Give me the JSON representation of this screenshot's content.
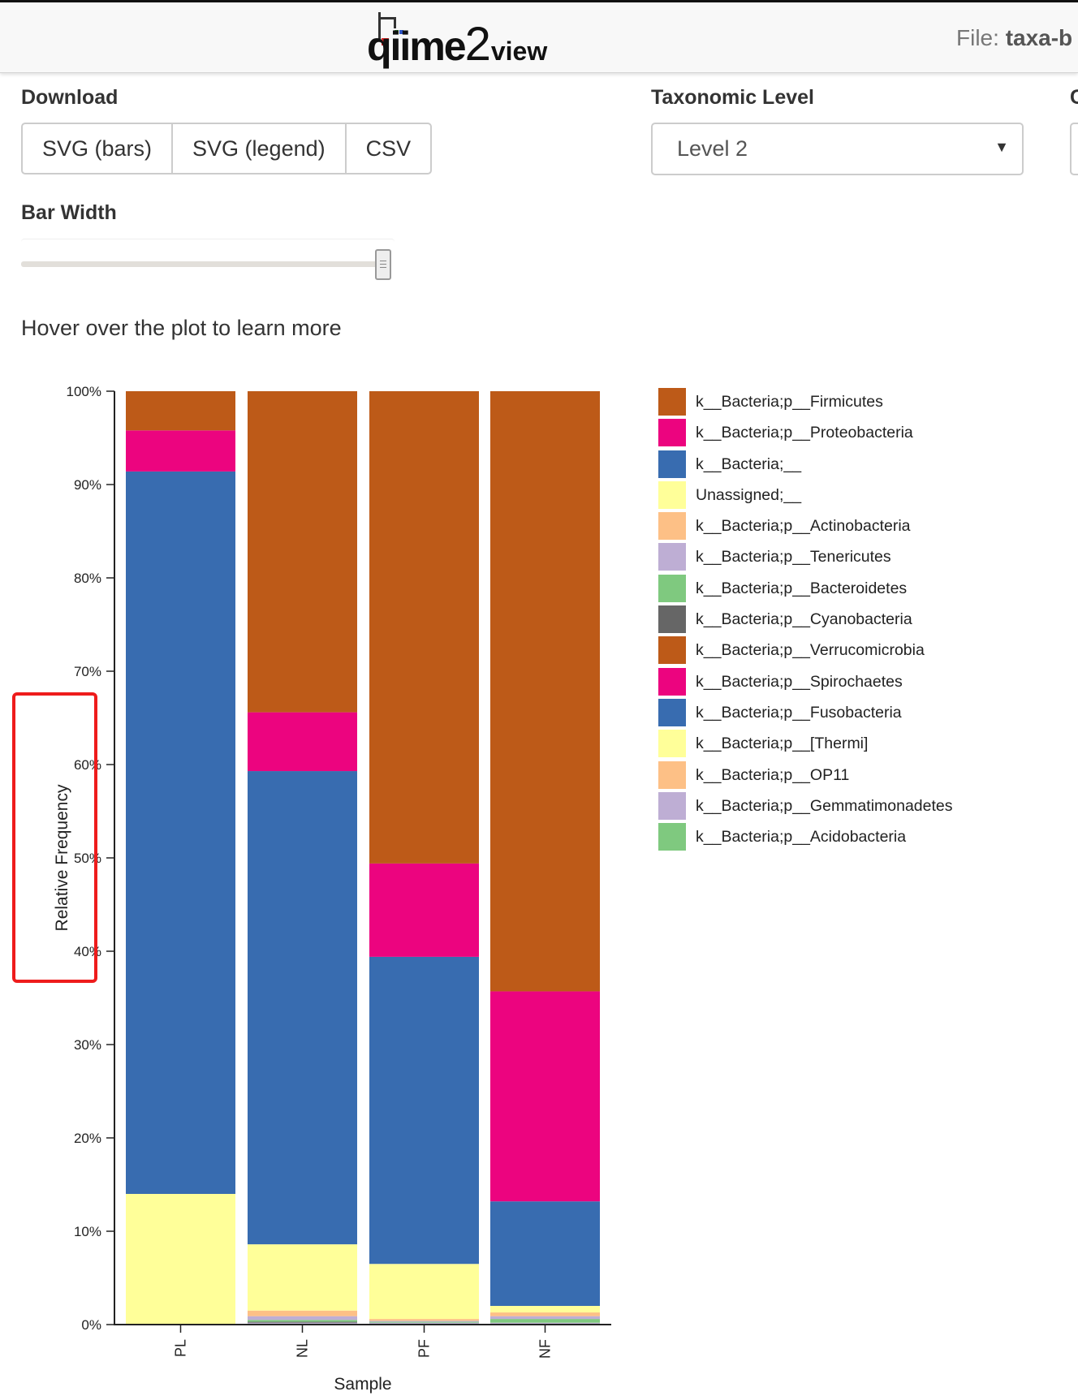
{
  "header": {
    "logo_qiime": "qiime",
    "logo_two": "2",
    "logo_view": "view",
    "file_label": "File: ",
    "file_name": "taxa-b"
  },
  "download": {
    "title": "Download",
    "buttons": [
      "SVG (bars)",
      "SVG (legend)",
      "CSV"
    ]
  },
  "taxonomic_level": {
    "title": "Taxonomic Level",
    "selected": "Level 2"
  },
  "next_control_title": "C",
  "bar_width": {
    "title": "Bar Width",
    "value_fraction": 1.0
  },
  "hint": "Hover over the plot to learn more",
  "colors": {
    "brown": "#BD5A18",
    "magenta": "#EC047F",
    "blue": "#386CB0",
    "yellow": "#FFFF99",
    "peach": "#FDC086",
    "lavender": "#BEAED4",
    "green": "#7FC97F",
    "gray": "#666666",
    "highlight": "#EE1C1C"
  },
  "legend": [
    {
      "label": "k__Bacteria;p__Firmicutes",
      "color": "#BD5A18"
    },
    {
      "label": "k__Bacteria;p__Proteobacteria",
      "color": "#EC047F"
    },
    {
      "label": "k__Bacteria;__",
      "color": "#386CB0"
    },
    {
      "label": "Unassigned;__",
      "color": "#FFFF99"
    },
    {
      "label": "k__Bacteria;p__Actinobacteria",
      "color": "#FDC086"
    },
    {
      "label": "k__Bacteria;p__Tenericutes",
      "color": "#BEAED4"
    },
    {
      "label": "k__Bacteria;p__Bacteroidetes",
      "color": "#7FC97F"
    },
    {
      "label": "k__Bacteria;p__Cyanobacteria",
      "color": "#666666"
    },
    {
      "label": "k__Bacteria;p__Verrucomicrobia",
      "color": "#BD5A18"
    },
    {
      "label": "k__Bacteria;p__Spirochaetes",
      "color": "#EC047F"
    },
    {
      "label": "k__Bacteria;p__Fusobacteria",
      "color": "#386CB0"
    },
    {
      "label": "k__Bacteria;p__[Thermi]",
      "color": "#FFFF99"
    },
    {
      "label": "k__Bacteria;p__OP11",
      "color": "#FDC086"
    },
    {
      "label": "k__Bacteria;p__Gemmatimonadetes",
      "color": "#BEAED4"
    },
    {
      "label": "k__Bacteria;p__Acidobacteria",
      "color": "#7FC97F"
    }
  ],
  "chart_data": {
    "type": "bar",
    "stacked": true,
    "xlabel": "Sample",
    "ylabel": "Relative Frequency",
    "ylim": [
      0,
      100
    ],
    "y_ticks": [
      "0%",
      "10%",
      "20%",
      "30%",
      "40%",
      "50%",
      "60%",
      "70%",
      "80%",
      "90%",
      "100%"
    ],
    "categories": [
      "PL",
      "NL",
      "PF",
      "NF"
    ],
    "series": [
      {
        "name": "k__Bacteria;p__Acidobacteria",
        "color": "#7FC97F",
        "values": [
          0,
          0.1,
          0.1,
          0.1
        ]
      },
      {
        "name": "k__Bacteria;p__Gemmatimonadetes",
        "color": "#BEAED4",
        "values": [
          0,
          0.1,
          0.1,
          0.1
        ]
      },
      {
        "name": "k__Bacteria;p__Cyanobacteria",
        "color": "#666666",
        "values": [
          0,
          0.1,
          0,
          0
        ]
      },
      {
        "name": "k__Bacteria;p__Bacteroidetes",
        "color": "#7FC97F",
        "values": [
          0,
          0.2,
          0.1,
          0.4
        ]
      },
      {
        "name": "k__Bacteria;p__Tenericutes",
        "color": "#BEAED4",
        "values": [
          0,
          0.4,
          0.1,
          0.3
        ]
      },
      {
        "name": "k__Bacteria;p__Actinobacteria",
        "color": "#FDC086",
        "values": [
          0,
          0.6,
          0.2,
          0.4
        ]
      },
      {
        "name": "Unassigned;__",
        "color": "#FFFF99",
        "values": [
          14.0,
          7.1,
          5.9,
          0.7
        ]
      },
      {
        "name": "k__Bacteria;__",
        "color": "#386CB0",
        "values": [
          77.4,
          50.7,
          32.9,
          11.2
        ]
      },
      {
        "name": "k__Bacteria;p__Proteobacteria",
        "color": "#EC047F",
        "values": [
          4.4,
          6.3,
          10.0,
          22.5
        ]
      },
      {
        "name": "k__Bacteria;p__Firmicutes",
        "color": "#BD5A18",
        "values": [
          4.2,
          34.4,
          50.6,
          64.3
        ]
      }
    ],
    "grid": false,
    "legend_position": "right"
  }
}
